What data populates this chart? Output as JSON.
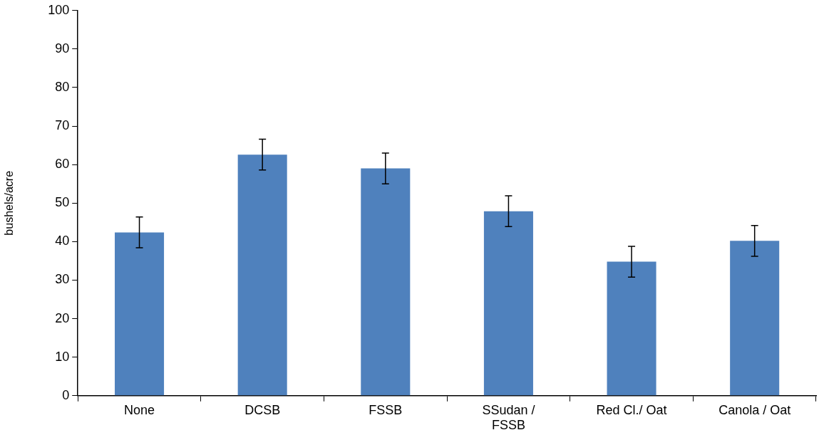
{
  "chart_data": {
    "type": "bar",
    "ylabel": "bushels/acre",
    "categories": [
      "None",
      "DCSB",
      "FSSB",
      "SSudan / FSSB",
      "Red Cl./ Oat",
      "Canola / Oat"
    ],
    "values": [
      42.4,
      62.6,
      59,
      47.9,
      34.8,
      40.2
    ],
    "errors": [
      4,
      4,
      4,
      4,
      4,
      4
    ],
    "color": "#4f81bd",
    "ylim": [
      0,
      100
    ],
    "yticks": [
      0,
      10,
      20,
      30,
      40,
      50,
      60,
      70,
      80,
      90,
      100
    ],
    "grid": false,
    "legend": false
  }
}
